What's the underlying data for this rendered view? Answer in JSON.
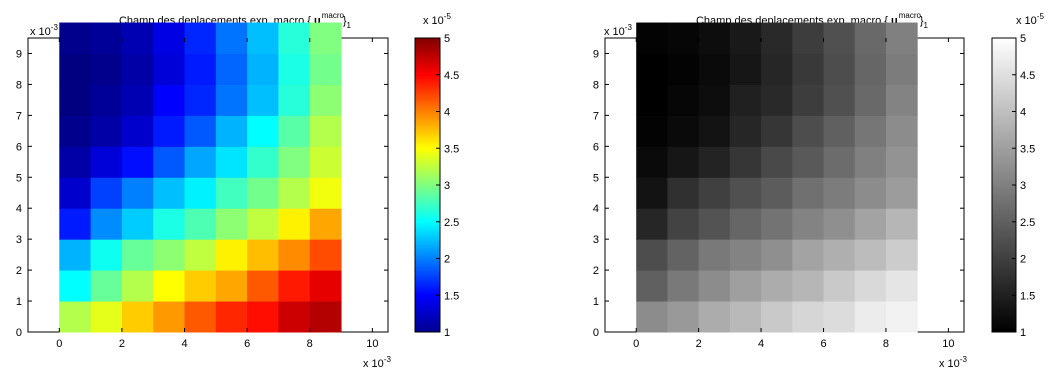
{
  "chart_data": [
    {
      "type": "heatmap",
      "colormap": "jet",
      "title": "Champ des deplacements exp. macro {",
      "title_symbol": "u",
      "title_superscript": "macro",
      "title_subscript": "exp",
      "title_suffix": "}",
      "title_suffix_subscript": "1",
      "x_exponent_label": "x 10",
      "x_exponent_power": "-3",
      "y_exponent_label": "x 10",
      "y_exponent_power": "-3",
      "colorbar_exponent_label": "x 10",
      "colorbar_exponent_power": "-5",
      "x_ticks": [
        "0",
        "2",
        "4",
        "6",
        "8",
        "10"
      ],
      "y_ticks": [
        "0",
        "1",
        "2",
        "3",
        "4",
        "5",
        "6",
        "7",
        "8",
        "9"
      ],
      "colorbar_ticks": [
        "1",
        "1.5",
        "2",
        "2.5",
        "3",
        "3.5",
        "4",
        "4.5",
        "5"
      ],
      "xlim": [
        -1,
        10.5
      ],
      "ylim": [
        0,
        9.5
      ],
      "clim": [
        1,
        5
      ],
      "cell_size": 1,
      "grid_origin": [
        0,
        0
      ],
      "values": [
        [
          3.2,
          3.4,
          3.7,
          3.9,
          4.15,
          4.35,
          4.45,
          4.7,
          4.8
        ],
        [
          2.5,
          2.9,
          3.2,
          3.5,
          3.7,
          3.85,
          4.15,
          4.4,
          4.6
        ],
        [
          2.2,
          2.55,
          2.9,
          3.05,
          3.25,
          3.55,
          3.75,
          3.95,
          4.2
        ],
        [
          1.6,
          2.05,
          2.3,
          2.6,
          2.8,
          3.05,
          3.25,
          3.55,
          3.85
        ],
        [
          1.3,
          1.75,
          2.0,
          2.25,
          2.45,
          2.75,
          2.95,
          3.2,
          3.45
        ],
        [
          1.15,
          1.35,
          1.55,
          1.85,
          2.15,
          2.4,
          2.7,
          3.0,
          3.3
        ],
        [
          1.05,
          1.15,
          1.3,
          1.6,
          1.85,
          2.2,
          2.5,
          2.85,
          3.2
        ],
        [
          1.0,
          1.1,
          1.2,
          1.5,
          1.65,
          1.95,
          2.25,
          2.65,
          3.05
        ],
        [
          1.0,
          1.05,
          1.15,
          1.35,
          1.6,
          1.9,
          2.2,
          2.6,
          2.95
        ],
        [
          1.05,
          1.1,
          1.2,
          1.4,
          1.65,
          1.95,
          2.25,
          2.65,
          3.0
        ]
      ]
    },
    {
      "type": "heatmap",
      "colormap": "gray",
      "title": "Champ des deplacements exp. macro {",
      "title_symbol": "u",
      "title_superscript": "macro",
      "title_subscript": "exp",
      "title_suffix": "}",
      "title_suffix_subscript": "1",
      "x_exponent_label": "x 10",
      "x_exponent_power": "-3",
      "y_exponent_label": "x 10",
      "y_exponent_power": "-3",
      "colorbar_exponent_label": "x 10",
      "colorbar_exponent_power": "-5",
      "x_ticks": [
        "0",
        "2",
        "4",
        "6",
        "8",
        "10"
      ],
      "y_ticks": [
        "0",
        "1",
        "2",
        "3",
        "4",
        "5",
        "6",
        "7",
        "8",
        "9"
      ],
      "colorbar_ticks": [
        "1",
        "1.5",
        "2",
        "2.5",
        "3",
        "3.5",
        "4",
        "4.5",
        "5"
      ],
      "xlim": [
        -1,
        10.5
      ],
      "ylim": [
        0,
        9.5
      ],
      "clim": [
        1,
        5
      ],
      "cell_size": 1,
      "grid_origin": [
        0,
        0
      ],
      "values": [
        [
          3.2,
          3.4,
          3.7,
          3.9,
          4.15,
          4.35,
          4.45,
          4.7,
          4.8
        ],
        [
          2.5,
          2.9,
          3.2,
          3.5,
          3.7,
          3.85,
          4.15,
          4.4,
          4.6
        ],
        [
          2.2,
          2.55,
          2.9,
          3.05,
          3.25,
          3.55,
          3.75,
          3.95,
          4.2
        ],
        [
          1.6,
          2.05,
          2.3,
          2.6,
          2.8,
          3.05,
          3.25,
          3.55,
          3.85
        ],
        [
          1.3,
          1.75,
          2.0,
          2.25,
          2.45,
          2.75,
          2.95,
          3.2,
          3.45
        ],
        [
          1.15,
          1.35,
          1.55,
          1.85,
          2.15,
          2.4,
          2.7,
          3.0,
          3.3
        ],
        [
          1.05,
          1.15,
          1.3,
          1.6,
          1.85,
          2.2,
          2.5,
          2.85,
          3.2
        ],
        [
          1.0,
          1.1,
          1.2,
          1.5,
          1.65,
          1.95,
          2.25,
          2.65,
          3.05
        ],
        [
          1.0,
          1.05,
          1.15,
          1.35,
          1.6,
          1.9,
          2.2,
          2.6,
          2.95
        ],
        [
          1.05,
          1.1,
          1.2,
          1.4,
          1.65,
          1.95,
          2.25,
          2.65,
          3.0
        ]
      ]
    }
  ]
}
